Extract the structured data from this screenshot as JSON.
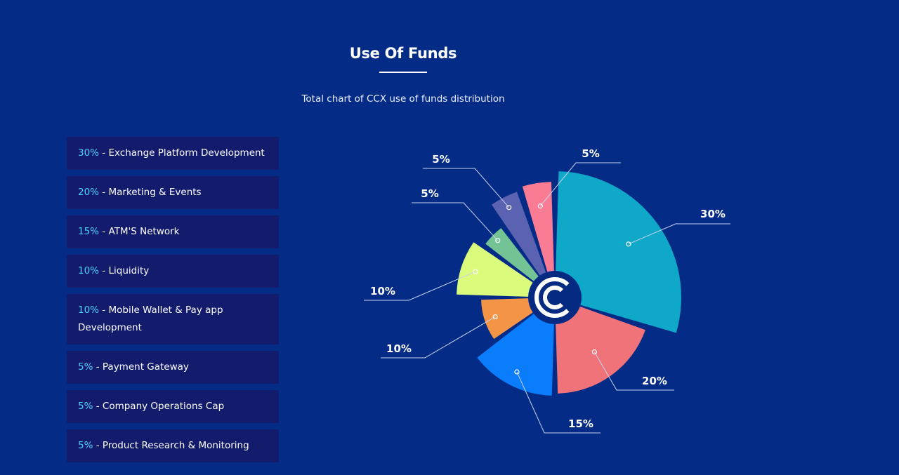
{
  "header": {
    "title": "Use Of Funds",
    "subtitle": "Total chart of CCX use of funds distribution"
  },
  "legend": [
    {
      "pct": "30%",
      "label": "Exchange Platform Development"
    },
    {
      "pct": "20%",
      "label": "Marketing & Events"
    },
    {
      "pct": "15%",
      "label": "ATM'S Network"
    },
    {
      "pct": "10%",
      "label": "Liquidity"
    },
    {
      "pct": "10%",
      "label": "Mobile Wallet & Pay app Development"
    },
    {
      "pct": "5%",
      "label": "Payment Gateway"
    },
    {
      "pct": "5%",
      "label": "Company Operations Cap"
    },
    {
      "pct": "5%",
      "label": "Product Research & Monitoring"
    }
  ],
  "chart_data": {
    "type": "pie",
    "slices": [
      {
        "value": 30,
        "label": "30%",
        "color": "#0fa8c8"
      },
      {
        "value": 20,
        "label": "20%",
        "color": "#ef7378"
      },
      {
        "value": 15,
        "label": "15%",
        "color": "#0a7dfd"
      },
      {
        "value": 10,
        "label": "10%",
        "color": "#f49447"
      },
      {
        "value": 10,
        "label": "10%",
        "color": "#dbfb7c"
      },
      {
        "value": 5,
        "label": "5%",
        "color": "#73c395"
      },
      {
        "value": 5,
        "label": "5%",
        "color": "#5b62b1"
      },
      {
        "value": 5,
        "label": "5%",
        "color": "#f97b94"
      }
    ],
    "center_logo": "ccx-c-logo"
  }
}
